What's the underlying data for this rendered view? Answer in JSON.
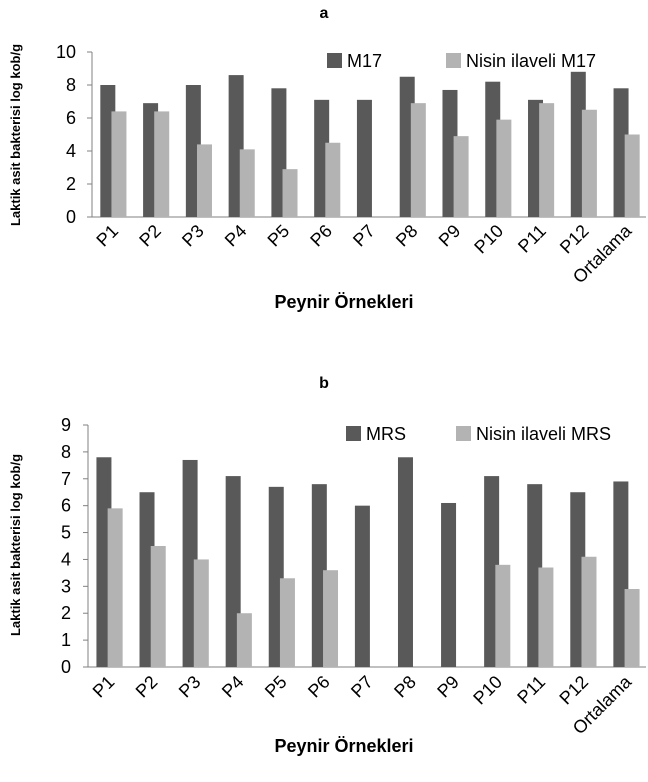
{
  "chart_data": [
    {
      "type": "bar",
      "title": "a",
      "xlabel": "Peynir Örnekleri",
      "ylabel": "Laktik asit bakterisi log kob/g",
      "ylim": [
        0,
        10
      ],
      "yticks": [
        0,
        2,
        4,
        6,
        8,
        10
      ],
      "grid": false,
      "legend_position": "top-right",
      "categories": [
        "P1",
        "P2",
        "P3",
        "P4",
        "P5",
        "P6",
        "P7",
        "P8",
        "P9",
        "P10",
        "P11",
        "P12",
        "Ortalama"
      ],
      "series": [
        {
          "name": "M17",
          "color": "#595959",
          "values": [
            8.0,
            6.9,
            8.0,
            8.6,
            7.8,
            7.1,
            7.1,
            8.5,
            7.7,
            8.2,
            7.1,
            8.8,
            7.8
          ]
        },
        {
          "name": "Nisin ilaveli M17",
          "color": "#b3b3b3",
          "values": [
            6.4,
            6.4,
            4.4,
            4.1,
            2.9,
            4.5,
            0,
            6.9,
            4.9,
            5.9,
            6.9,
            6.5,
            5.0
          ]
        }
      ]
    },
    {
      "type": "bar",
      "title": "b",
      "xlabel": "Peynir Örnekleri",
      "ylabel": "Laktik asit bakterisi log kob/g",
      "ylim": [
        0,
        9
      ],
      "yticks": [
        0,
        1,
        2,
        3,
        4,
        5,
        6,
        7,
        8,
        9
      ],
      "grid": false,
      "legend_position": "top-right",
      "categories": [
        "P1",
        "P2",
        "P3",
        "P4",
        "P5",
        "P6",
        "P7",
        "P8",
        "P9",
        "P10",
        "P11",
        "P12",
        "Ortalama"
      ],
      "series": [
        {
          "name": "MRS",
          "color": "#595959",
          "values": [
            7.8,
            6.5,
            7.7,
            7.1,
            6.7,
            6.8,
            6.0,
            7.8,
            6.1,
            7.1,
            6.8,
            6.5,
            6.9
          ]
        },
        {
          "name": "Nisin ilaveli MRS",
          "color": "#b3b3b3",
          "values": [
            5.9,
            4.5,
            4.0,
            2.0,
            3.3,
            3.6,
            0,
            0,
            0,
            3.8,
            3.7,
            4.1,
            2.9
          ]
        }
      ]
    }
  ]
}
